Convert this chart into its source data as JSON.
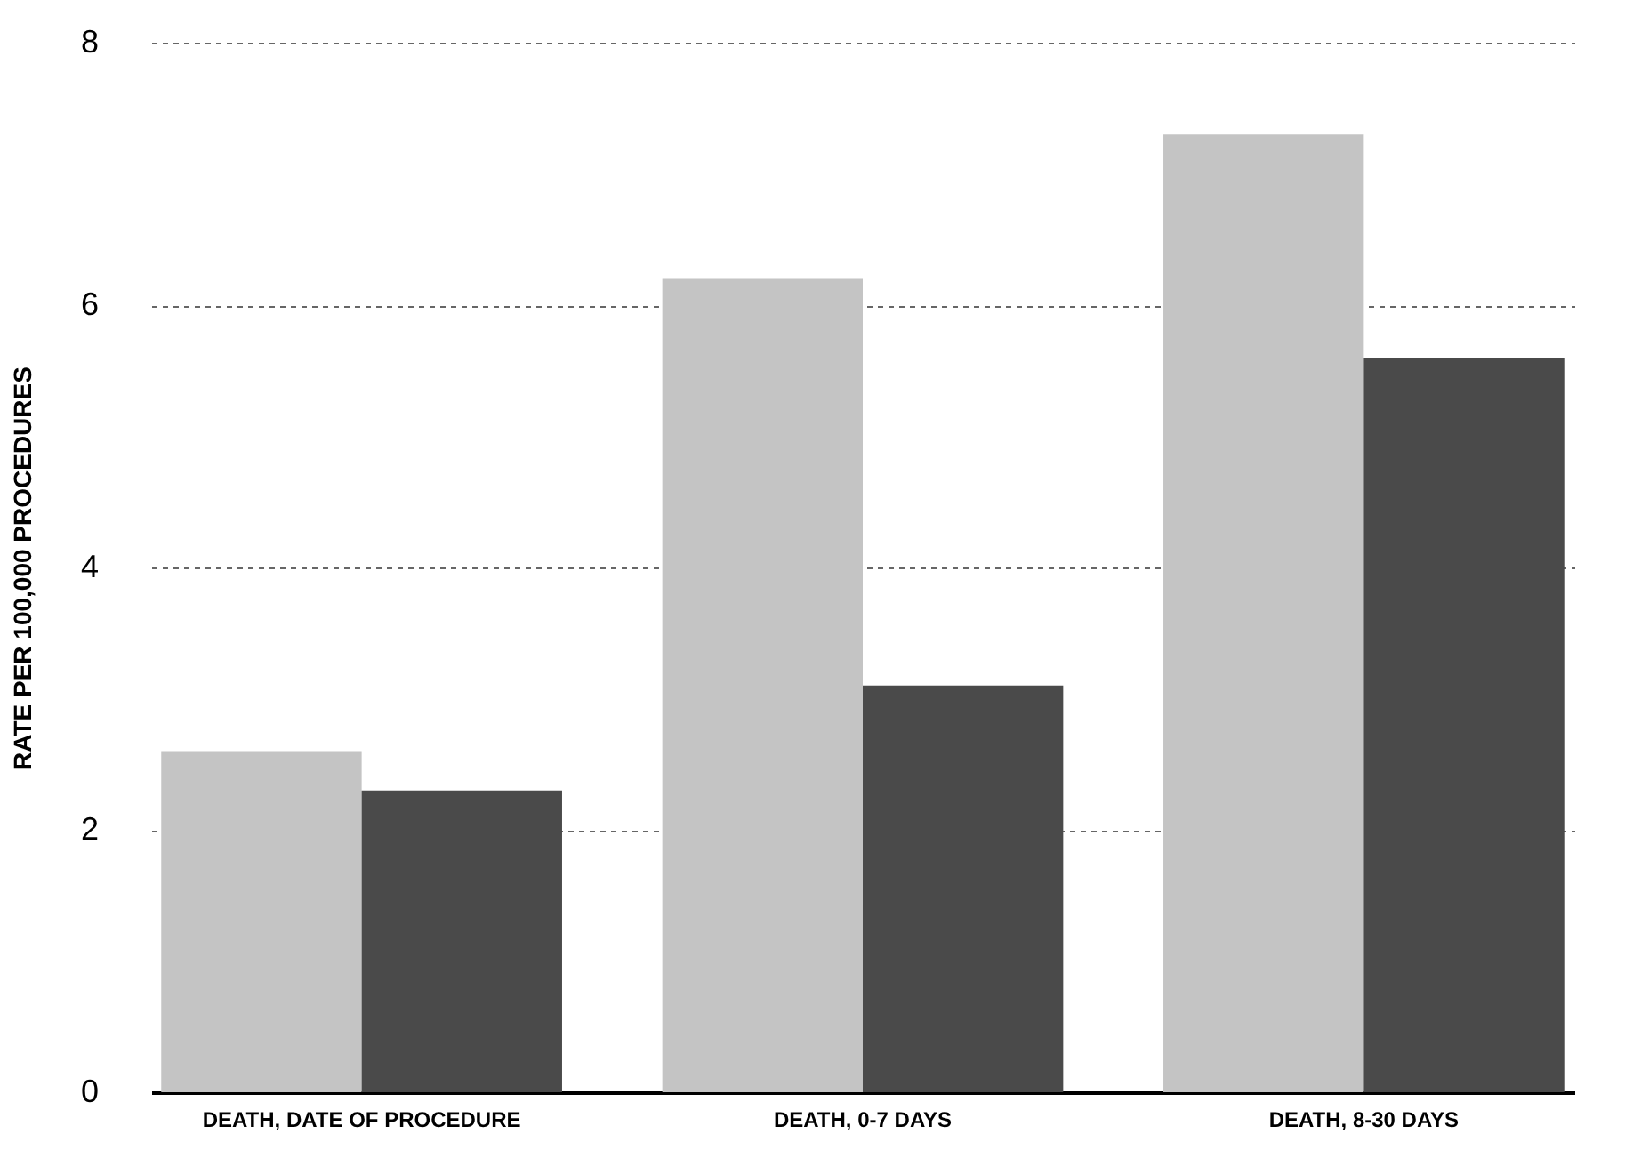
{
  "chart_data": {
    "type": "bar",
    "ylabel": "RATE PER 100,000 PROCEDURES",
    "categories": [
      "DEATH, DATE OF PROCEDURE",
      "DEATH, 0-7 DAYS",
      "DEATH, 8-30 DAYS"
    ],
    "series": [
      {
        "color": "#c4c4c4",
        "values": [
          2.6,
          6.2,
          7.3
        ]
      },
      {
        "color": "#4a4a4a",
        "values": [
          2.3,
          3.1,
          5.6
        ]
      }
    ],
    "ylim": [
      0,
      8
    ],
    "yticks": [
      0,
      2,
      4,
      6,
      8
    ],
    "grid": "y",
    "legend": false
  }
}
